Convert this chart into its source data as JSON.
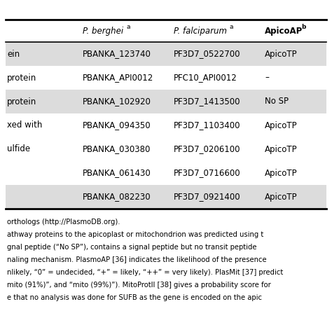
{
  "col0_texts": [
    "ein",
    "protein",
    "protein",
    "xed with",
    "ulfide",
    "",
    ""
  ],
  "col1_texts": [
    "PBANKA_123740",
    "PBANKA_API0012",
    "PBANKA_102920",
    "PBANKA_094350",
    "PBANKA_030380",
    "PBANKA_061430",
    "PBANKA_082230"
  ],
  "col2_texts": [
    "PF3D7_0522700",
    "PFC10_API0012",
    "PF3D7_1413500",
    "PF3D7_1103400",
    "PF3D7_0206100",
    "PF3D7_0716600",
    "PF3D7_0921400"
  ],
  "col3_texts": [
    "ApicoTP",
    "–",
    "No SP",
    "ApicoTP",
    "ApicoTP",
    "ApicoTP",
    "ApicoTP"
  ],
  "row_shaded": [
    true,
    false,
    true,
    false,
    false,
    false,
    true
  ],
  "header_col1": "P. berghei",
  "header_col1_sup": "a",
  "header_col2": "P. falciparum",
  "header_col2_sup": "a",
  "header_col3": "ApicoAP",
  "header_col3_sup": "b",
  "footer_lines": [
    "orthologs (http://PlasmoDB.org).",
    "athway proteins to the apicoplast or mitochondrion was predicted using t",
    "gnal peptide (“No SP”), contains a signal peptide but no transit peptide",
    "naling mechanism. PlasmoAP [36] indicates the likelihood of the presence",
    "nlikely, “0” = undecided, “+” = likely, “++” = very likely). PlasMit [37] predict",
    "mito (91%)”, and “mito (99%)”). MitoProtII [38] gives a probability score for",
    "e that no analysis was done for SUFB as the gene is encoded on the apic"
  ],
  "bg_shaded": "#dcdcdc",
  "bg_white": "#ffffff",
  "text_color": "#000000",
  "font_size_table": 8.5,
  "font_size_footer": 7.2,
  "font_size_header": 8.5
}
